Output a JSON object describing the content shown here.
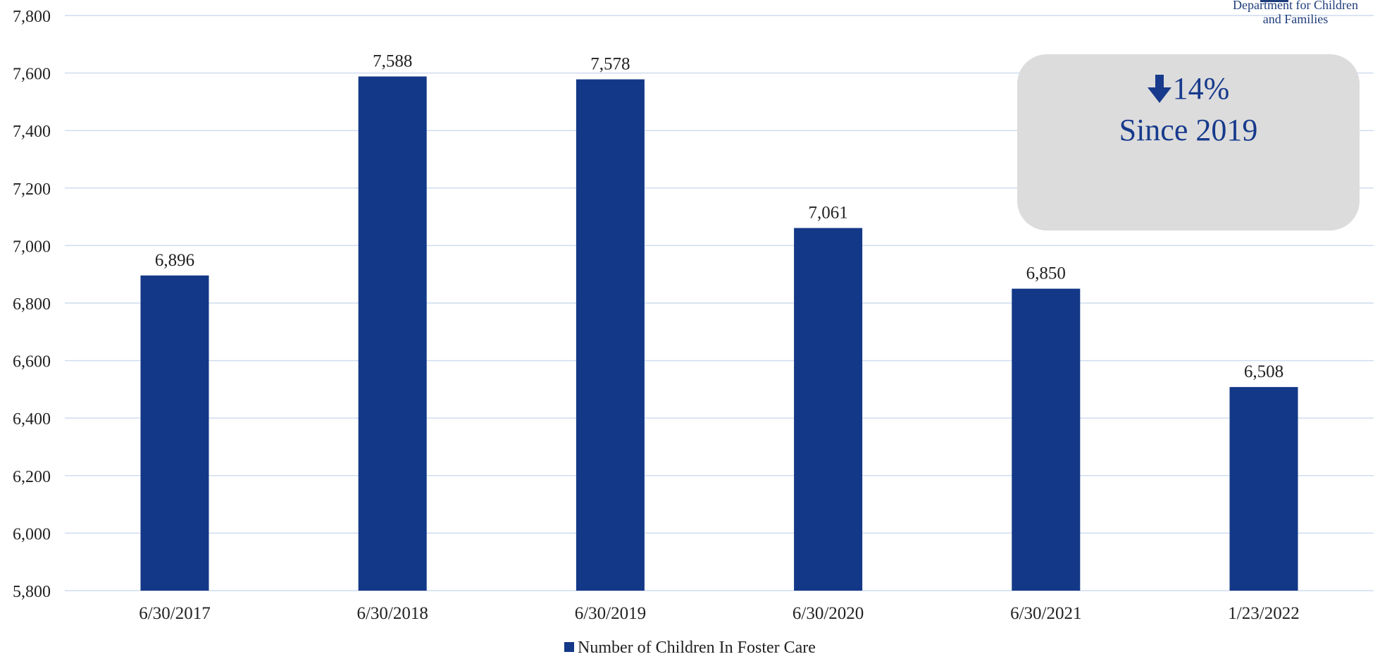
{
  "org": {
    "logo_text_line1": "Department for Children",
    "logo_text_line2": "and Families"
  },
  "callout": {
    "arrow_icon": "arrow-down-icon",
    "change": "14%",
    "since": "Since 2019"
  },
  "colors": {
    "bar": "#133887",
    "grid": "#cfdcef",
    "callout_bg": "#dcdcdc",
    "callout_text": "#173a8c"
  },
  "chart_data": {
    "type": "bar",
    "categories": [
      "6/30/2017",
      "6/30/2018",
      "6/30/2019",
      "6/30/2020",
      "6/30/2021",
      "1/23/2022"
    ],
    "series": [
      {
        "name": "Number of Children In Foster Care",
        "values": [
          6896,
          7588,
          7578,
          7061,
          6850,
          6508
        ]
      }
    ],
    "data_labels": [
      "6,896",
      "7,588",
      "7,578",
      "7,061",
      "6,850",
      "6,508"
    ],
    "y_ticks": [
      "5,800",
      "6,000",
      "6,200",
      "6,400",
      "6,600",
      "6,800",
      "7,000",
      "7,200",
      "7,400",
      "7,600",
      "7,800"
    ],
    "ylim": [
      5800,
      7800
    ],
    "grid": true,
    "legend_position": "bottom"
  }
}
